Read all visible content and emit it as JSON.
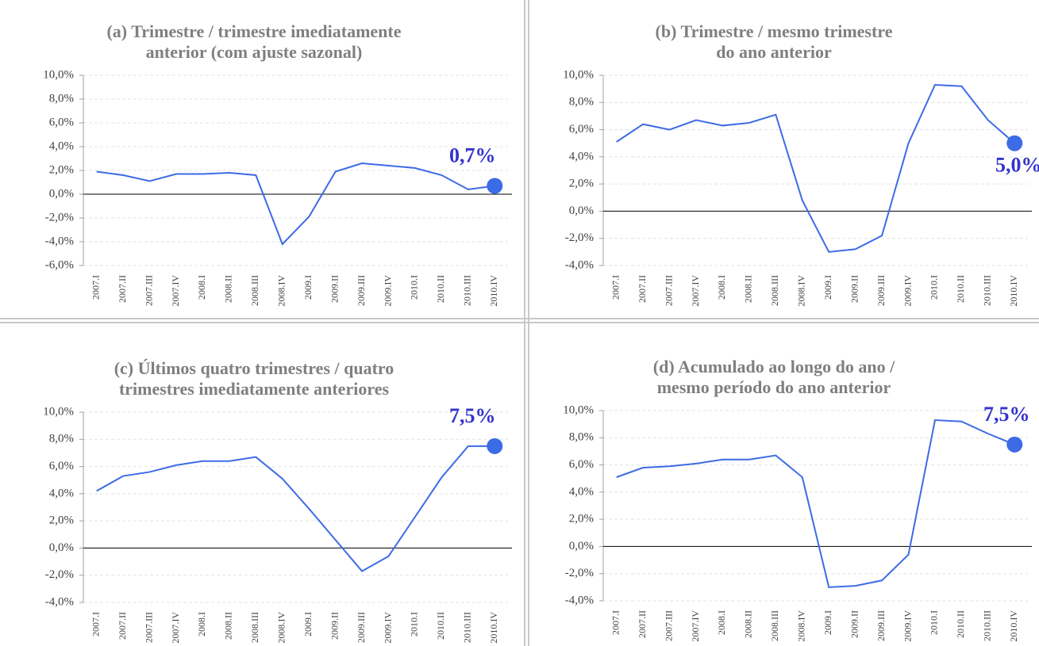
{
  "chart_data": [
    {
      "type": "line",
      "title": [
        "(a) Trimestre / trimestre imediatamente",
        "anterior (com ajuste sazonal)"
      ],
      "categories": [
        "2007.I",
        "2007.II",
        "2007.III",
        "2007.IV",
        "2008.I",
        "2008.II",
        "2008.III",
        "2008.IV",
        "2009.I",
        "2009.II",
        "2009.III",
        "2009.IV",
        "2010.I",
        "2010.II",
        "2010.III",
        "2010.IV"
      ],
      "series": [
        {
          "color": "#3d6be6",
          "values": [
            1.9,
            1.6,
            1.1,
            1.7,
            1.7,
            1.8,
            1.6,
            -4.2,
            -1.9,
            1.9,
            2.6,
            2.4,
            2.2,
            1.6,
            0.4,
            0.7
          ],
          "value_labels": [
            null,
            null,
            null,
            null,
            null,
            null,
            null,
            null,
            null,
            null,
            null,
            null,
            null,
            null,
            null,
            "0,7%"
          ]
        }
      ],
      "ylim": [
        -6,
        10
      ],
      "yticks": [
        {
          "value": -6,
          "label": "-6,0%"
        },
        {
          "value": -4,
          "label": "-4,0%"
        },
        {
          "value": -2,
          "label": "-2,0%"
        },
        {
          "value": 0,
          "label": "0,0%"
        },
        {
          "value": 2,
          "label": "2,0%"
        },
        {
          "value": 4,
          "label": "4,0%"
        },
        {
          "value": 6,
          "label": "6,0%"
        },
        {
          "value": 8,
          "label": "8,0%"
        },
        {
          "value": 10,
          "label": "10,0%"
        }
      ],
      "grid": true
    },
    {
      "type": "line",
      "title": [
        "(b) Trimestre / mesmo trimestre",
        "do ano anterior"
      ],
      "categories": [
        "2007.I",
        "2007.II",
        "2007.III",
        "2007.IV",
        "2008.I",
        "2008.II",
        "2008.III",
        "2008.IV",
        "2009.I",
        "2009.II",
        "2009.III",
        "2009.IV",
        "2010.I",
        "2010.II",
        "2010.III",
        "2010.IV"
      ],
      "series": [
        {
          "color": "#3d6be6",
          "values": [
            5.1,
            6.4,
            6.0,
            6.7,
            6.3,
            6.5,
            7.1,
            0.8,
            -3.0,
            -2.8,
            -1.8,
            5.0,
            9.3,
            9.2,
            6.7,
            5.0
          ],
          "value_labels": [
            null,
            null,
            null,
            null,
            null,
            null,
            null,
            null,
            null,
            null,
            null,
            null,
            null,
            null,
            null,
            "5,0%"
          ]
        }
      ],
      "ylim": [
        -4,
        10
      ],
      "yticks": [
        {
          "value": -4,
          "label": "-4,0%"
        },
        {
          "value": -2,
          "label": "-2,0%"
        },
        {
          "value": 0,
          "label": "0,0%"
        },
        {
          "value": 2,
          "label": "2,0%"
        },
        {
          "value": 4,
          "label": "4,0%"
        },
        {
          "value": 6,
          "label": "6,0%"
        },
        {
          "value": 8,
          "label": "8,0%"
        },
        {
          "value": 10,
          "label": "10,0%"
        }
      ],
      "grid": true
    },
    {
      "type": "line",
      "title": [
        "(c) Últimos quatro trimestres / quatro",
        "trimestres imediatamente anteriores"
      ],
      "categories": [
        "2007.I",
        "2007.II",
        "2007.III",
        "2007.IV",
        "2008.I",
        "2008.II",
        "2008.III",
        "2008.IV",
        "2009.I",
        "2009.II",
        "2009.III",
        "2009.IV",
        "2010.I",
        "2010.II",
        "2010.III",
        "2010.IV"
      ],
      "series": [
        {
          "color": "#3d6be6",
          "values": [
            4.2,
            5.3,
            5.6,
            6.1,
            6.4,
            6.4,
            6.7,
            5.1,
            2.9,
            0.6,
            -1.7,
            -0.6,
            2.3,
            5.2,
            7.5,
            7.5
          ],
          "value_labels": [
            null,
            null,
            null,
            null,
            null,
            null,
            null,
            null,
            null,
            null,
            null,
            null,
            null,
            null,
            null,
            "7,5%"
          ]
        }
      ],
      "ylim": [
        -4,
        10
      ],
      "yticks": [
        {
          "value": -4,
          "label": "-4,0%"
        },
        {
          "value": -2,
          "label": "-2,0%"
        },
        {
          "value": 0,
          "label": "0,0%"
        },
        {
          "value": 2,
          "label": "2,0%"
        },
        {
          "value": 4,
          "label": "4,0%"
        },
        {
          "value": 6,
          "label": "6,0%"
        },
        {
          "value": 8,
          "label": "8,0%"
        },
        {
          "value": 10,
          "label": "10,0%"
        }
      ],
      "grid": true
    },
    {
      "type": "line",
      "title": [
        "(d) Acumulado ao longo do ano /",
        "mesmo período do ano anterior"
      ],
      "categories": [
        "2007.I",
        "2007.II",
        "2007.III",
        "2007.IV",
        "2008.I",
        "2008.II",
        "2008.III",
        "2008.IV",
        "2009.I",
        "2009.II",
        "2009.III",
        "2009.IV",
        "2010.I",
        "2010.II",
        "2010.III",
        "2010.IV"
      ],
      "series": [
        {
          "color": "#3d6be6",
          "values": [
            5.1,
            5.8,
            5.9,
            6.1,
            6.4,
            6.4,
            6.7,
            5.1,
            -3.0,
            -2.9,
            -2.5,
            -0.6,
            9.3,
            9.2,
            8.3,
            7.5
          ],
          "value_labels": [
            null,
            null,
            null,
            null,
            null,
            null,
            null,
            null,
            null,
            null,
            null,
            null,
            null,
            null,
            null,
            "7,5%"
          ]
        }
      ],
      "ylim": [
        -4,
        10
      ],
      "yticks": [
        {
          "value": -4,
          "label": "-4,0%"
        },
        {
          "value": -2,
          "label": "-2,0%"
        },
        {
          "value": 0,
          "label": "0,0%"
        },
        {
          "value": 2,
          "label": "2,0%"
        },
        {
          "value": 4,
          "label": "4,0%"
        },
        {
          "value": 6,
          "label": "6,0%"
        },
        {
          "value": 8,
          "label": "8,0%"
        },
        {
          "value": 10,
          "label": "10,0%"
        }
      ],
      "grid": true
    }
  ]
}
